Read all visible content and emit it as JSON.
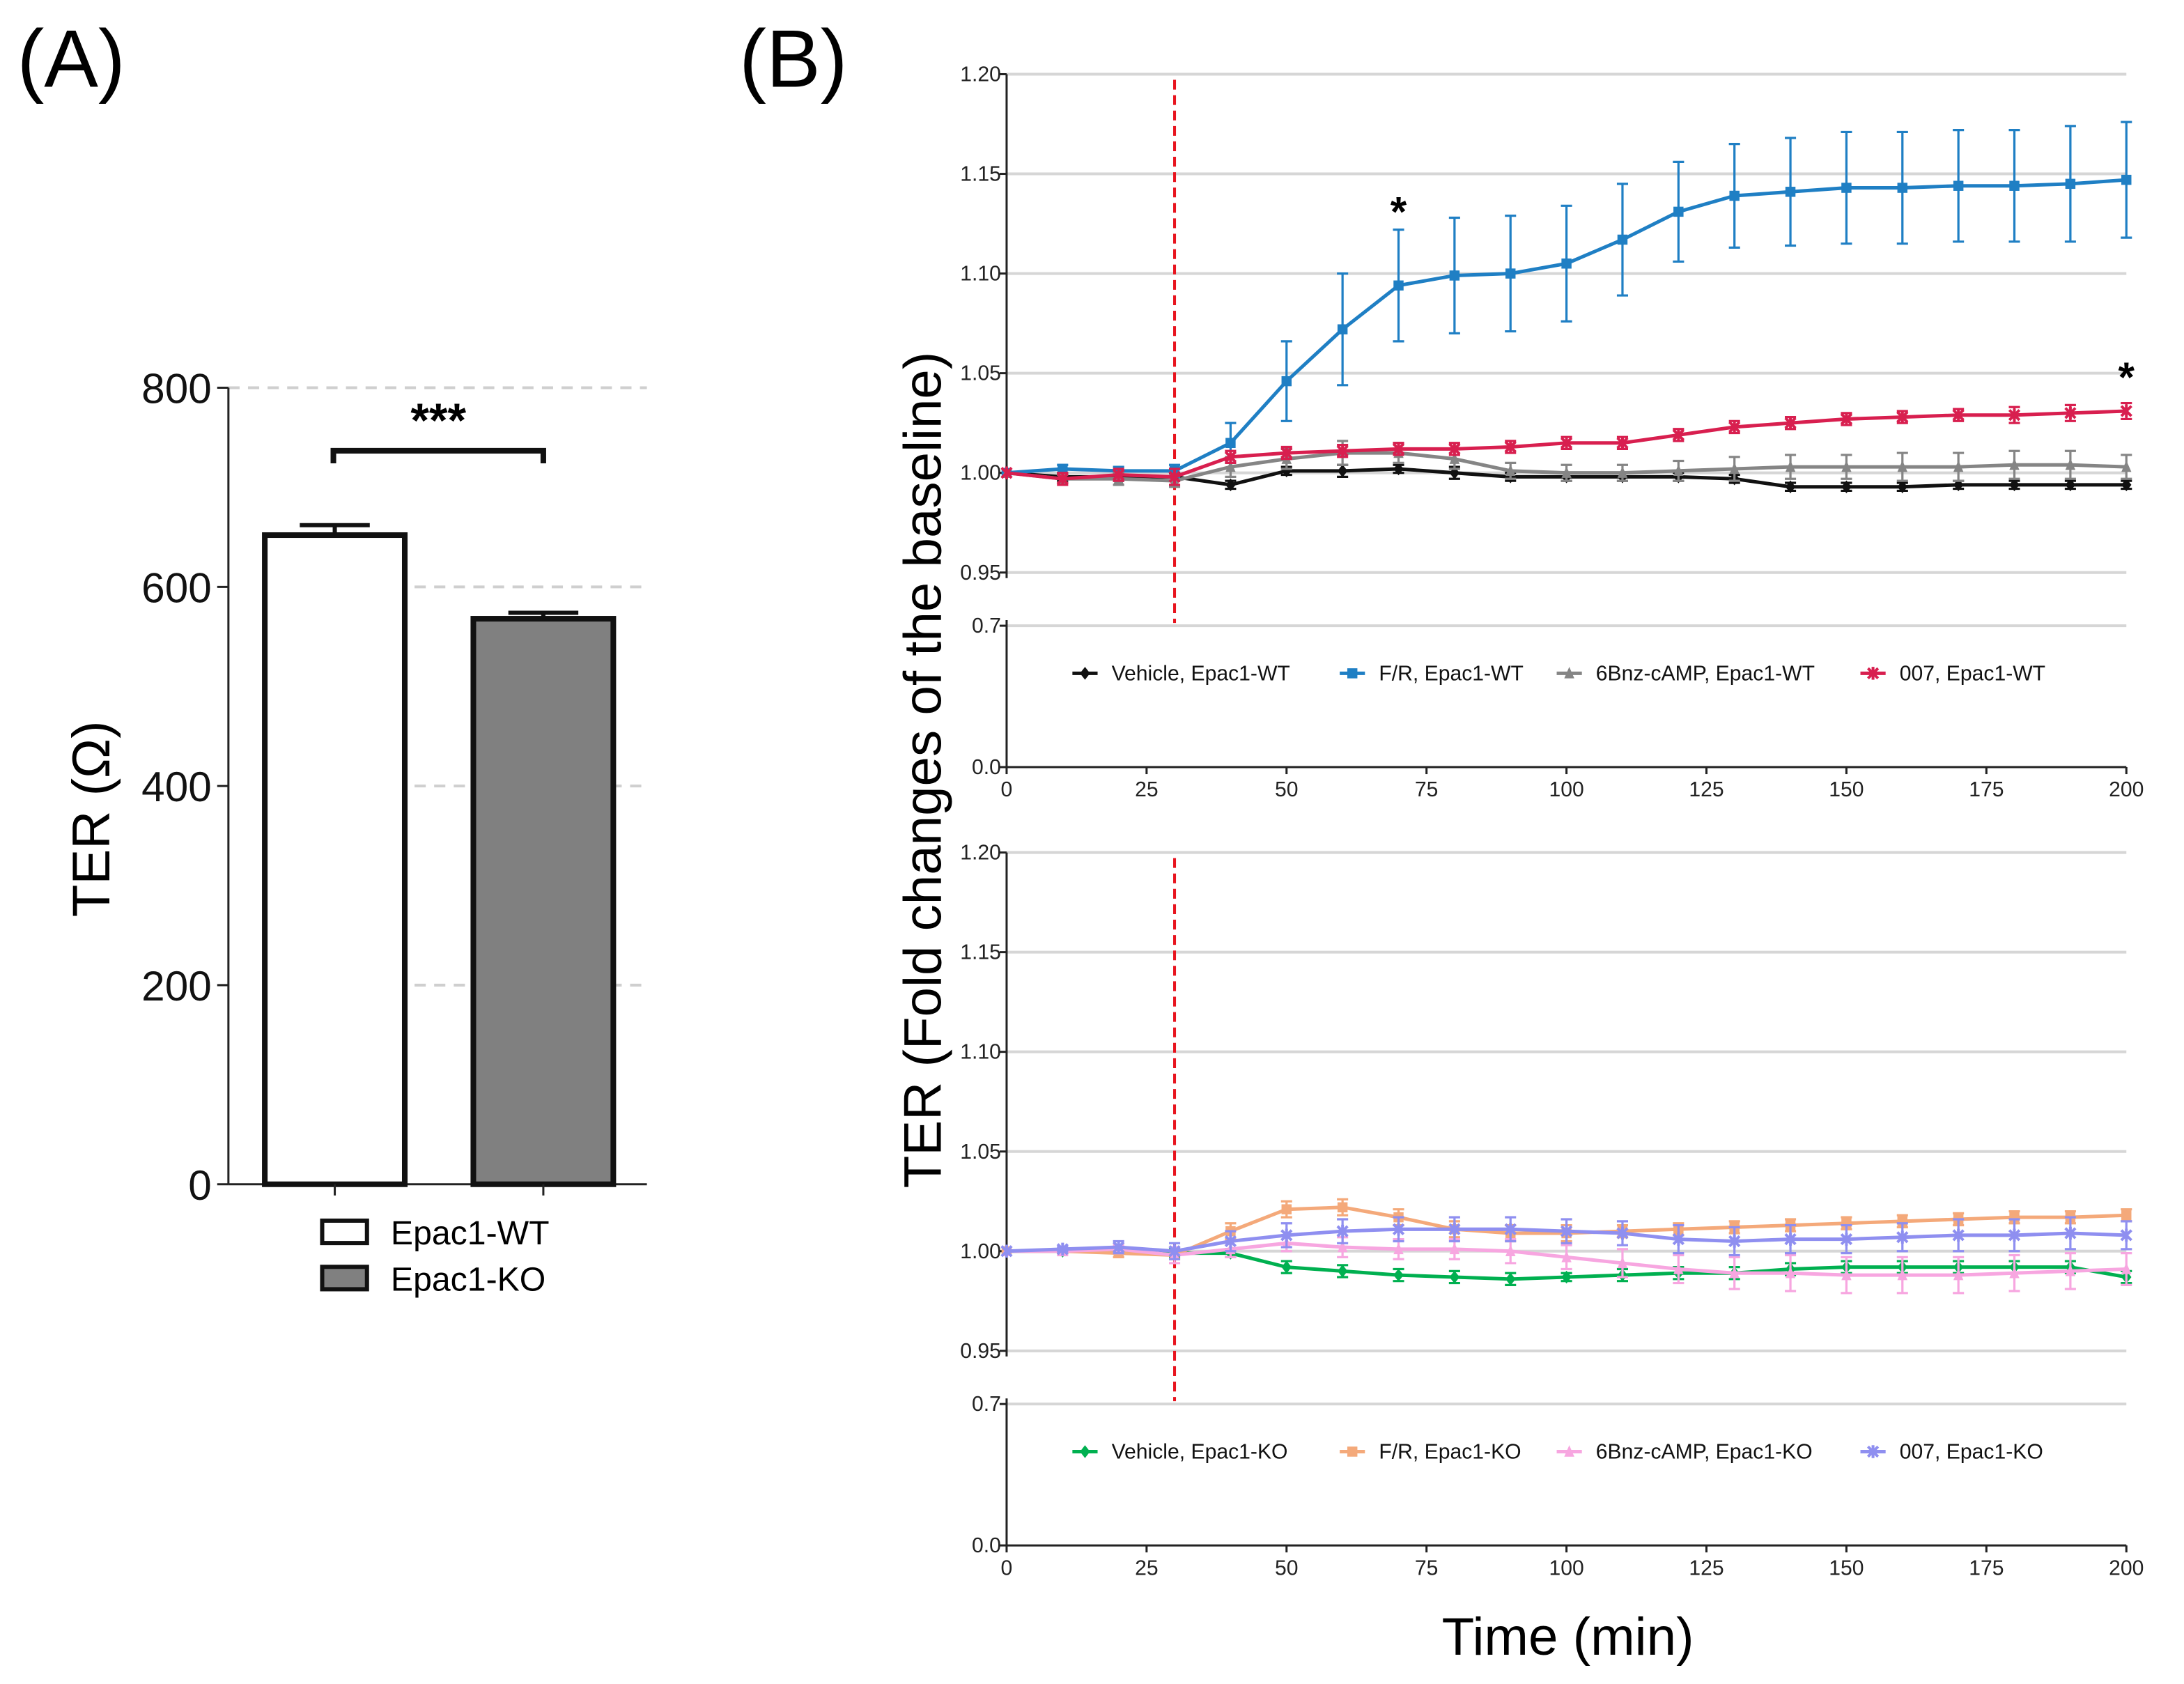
{
  "panel_labels": {
    "a": "(A)",
    "b": "(B)"
  },
  "chart_data": [
    {
      "type": "bar",
      "panel": "A",
      "categories": [
        "Epac1-WT",
        "Epac1-KO"
      ],
      "values": [
        652,
        568
      ],
      "errors": [
        10,
        6
      ],
      "colors": [
        "#ffffff",
        "#808080"
      ],
      "ylabel": "TER (Ω)",
      "ylim": [
        0,
        800
      ],
      "yticks": [
        "0",
        "200",
        "400",
        "600",
        "800"
      ],
      "significance": "***",
      "legend": [
        "Epac1-WT",
        "Epac1-KO"
      ]
    },
    {
      "type": "line",
      "panel": "B-top",
      "x": [
        0,
        10,
        20,
        30,
        40,
        50,
        60,
        70,
        80,
        90,
        100,
        110,
        120,
        130,
        140,
        150,
        160,
        170,
        180,
        190,
        200
      ],
      "xticks": [
        "0",
        "25",
        "50",
        "75",
        "100",
        "125",
        "150",
        "175",
        "200"
      ],
      "yticks_upper": [
        "0.95",
        "1.00",
        "1.05",
        "1.10",
        "1.15",
        "1.20"
      ],
      "yticks_lower": [
        "0.0",
        "0.7"
      ],
      "ylim_upper": [
        0.95,
        1.2
      ],
      "ylim_lower": [
        0.0,
        0.7
      ],
      "treatment_time": 30,
      "annotations": [
        {
          "text": "*",
          "x": 70,
          "y": 1.135
        },
        {
          "text": "*",
          "x": 200,
          "y": 1.052
        }
      ],
      "series": [
        {
          "name": "Vehicle, Epac1-WT",
          "color": "#111111",
          "marker": "diamond",
          "values": [
            1.0,
            0.998,
            0.998,
            0.998,
            0.994,
            1.001,
            1.001,
            1.002,
            1.0,
            0.998,
            0.998,
            0.998,
            0.998,
            0.997,
            0.993,
            0.993,
            0.993,
            0.994,
            0.994,
            0.994,
            0.994
          ],
          "errors": [
            0,
            0.002,
            0.002,
            0.002,
            0.002,
            0.002,
            0.003,
            0.002,
            0.003,
            0.002,
            0.002,
            0.002,
            0.002,
            0.002,
            0.002,
            0.002,
            0.002,
            0.002,
            0.002,
            0.002,
            0.002
          ]
        },
        {
          "name": "F/R, Epac1-WT",
          "color": "#1f7fc4",
          "marker": "square",
          "values": [
            1.0,
            1.002,
            1.001,
            1.001,
            1.015,
            1.046,
            1.072,
            1.094,
            1.099,
            1.1,
            1.105,
            1.117,
            1.131,
            1.139,
            1.141,
            1.143,
            1.143,
            1.144,
            1.144,
            1.145,
            1.147
          ],
          "errors": [
            0,
            0.002,
            0.002,
            0.003,
            0.01,
            0.02,
            0.028,
            0.028,
            0.029,
            0.029,
            0.029,
            0.028,
            0.025,
            0.026,
            0.027,
            0.028,
            0.028,
            0.028,
            0.028,
            0.029,
            0.029
          ]
        },
        {
          "name": "6Bnz-cAMP, Epac1-WT",
          "color": "#858585",
          "marker": "triangle",
          "values": [
            1.0,
            0.997,
            0.997,
            0.996,
            1.003,
            1.007,
            1.01,
            1.01,
            1.007,
            1.001,
            1.0,
            1.0,
            1.001,
            1.002,
            1.003,
            1.003,
            1.003,
            1.003,
            1.004,
            1.004,
            1.003
          ],
          "errors": [
            0,
            0.002,
            0.003,
            0.003,
            0.005,
            0.005,
            0.006,
            0.005,
            0.005,
            0.004,
            0.004,
            0.004,
            0.005,
            0.006,
            0.006,
            0.006,
            0.007,
            0.007,
            0.007,
            0.007,
            0.006
          ]
        },
        {
          "name": "007, Epac1-WT",
          "color": "#d81f4f",
          "marker": "star",
          "values": [
            1.0,
            0.997,
            0.999,
            0.998,
            1.008,
            1.01,
            1.011,
            1.012,
            1.012,
            1.013,
            1.015,
            1.015,
            1.019,
            1.023,
            1.025,
            1.027,
            1.028,
            1.029,
            1.029,
            1.03,
            1.031
          ],
          "errors": [
            0,
            0.003,
            0.003,
            0.004,
            0.003,
            0.003,
            0.003,
            0.003,
            0.003,
            0.003,
            0.003,
            0.003,
            0.003,
            0.003,
            0.003,
            0.003,
            0.003,
            0.003,
            0.004,
            0.004,
            0.004
          ]
        }
      ]
    },
    {
      "type": "line",
      "panel": "B-bottom",
      "x": [
        0,
        10,
        20,
        30,
        40,
        50,
        60,
        70,
        80,
        90,
        100,
        110,
        120,
        130,
        140,
        150,
        160,
        170,
        180,
        190,
        200
      ],
      "xticks": [
        "0",
        "25",
        "50",
        "75",
        "100",
        "125",
        "150",
        "175",
        "200"
      ],
      "yticks_upper": [
        "0.95",
        "1.00",
        "1.05",
        "1.10",
        "1.15",
        "1.20"
      ],
      "yticks_lower": [
        "0.0",
        "0.7"
      ],
      "ylim_upper": [
        0.95,
        1.2
      ],
      "ylim_lower": [
        0.0,
        0.7
      ],
      "treatment_time": 30,
      "annotations": [],
      "series": [
        {
          "name": "Vehicle, Epac1-KO",
          "color": "#00b050",
          "marker": "diamond",
          "values": [
            1.0,
            1.0,
            1.0,
            0.999,
            0.999,
            0.992,
            0.99,
            0.988,
            0.987,
            0.986,
            0.987,
            0.988,
            0.989,
            0.989,
            0.991,
            0.992,
            0.992,
            0.992,
            0.992,
            0.992,
            0.987
          ],
          "errors": [
            0,
            0.001,
            0.001,
            0.002,
            0.002,
            0.003,
            0.003,
            0.003,
            0.003,
            0.003,
            0.002,
            0.003,
            0.003,
            0.003,
            0.003,
            0.003,
            0.003,
            0.003,
            0.003,
            0.003,
            0.003
          ]
        },
        {
          "name": "F/R, Epac1-KO",
          "color": "#f4a97a",
          "marker": "square",
          "values": [
            1.0,
            1.0,
            0.999,
            0.998,
            1.01,
            1.021,
            1.022,
            1.017,
            1.011,
            1.009,
            1.009,
            1.01,
            1.011,
            1.012,
            1.013,
            1.014,
            1.015,
            1.016,
            1.017,
            1.017,
            1.018
          ],
          "errors": [
            0,
            0.001,
            0.002,
            0.002,
            0.004,
            0.004,
            0.004,
            0.004,
            0.004,
            0.004,
            0.004,
            0.003,
            0.003,
            0.003,
            0.003,
            0.003,
            0.003,
            0.003,
            0.003,
            0.003,
            0.003
          ]
        },
        {
          "name": "6Bnz-cAMP, Epac1-KO",
          "color": "#f7a6e0",
          "marker": "triangle",
          "values": [
            1.0,
            1.0,
            1.001,
            0.998,
            1.001,
            1.004,
            1.002,
            1.001,
            1.001,
            1.0,
            0.997,
            0.994,
            0.991,
            0.989,
            0.989,
            0.988,
            0.988,
            0.988,
            0.989,
            0.99,
            0.991
          ],
          "errors": [
            0,
            0.002,
            0.002,
            0.004,
            0.004,
            0.004,
            0.005,
            0.005,
            0.005,
            0.006,
            0.006,
            0.007,
            0.007,
            0.008,
            0.009,
            0.009,
            0.009,
            0.009,
            0.009,
            0.009,
            0.008
          ]
        },
        {
          "name": "007, Epac1-KO",
          "color": "#8f8ff0",
          "marker": "star",
          "values": [
            1.0,
            1.001,
            1.002,
            1.0,
            1.005,
            1.008,
            1.01,
            1.011,
            1.011,
            1.011,
            1.01,
            1.009,
            1.006,
            1.005,
            1.006,
            1.006,
            1.007,
            1.008,
            1.008,
            1.009,
            1.008
          ],
          "errors": [
            0,
            0.001,
            0.003,
            0.004,
            0.005,
            0.006,
            0.006,
            0.006,
            0.006,
            0.006,
            0.006,
            0.006,
            0.007,
            0.007,
            0.007,
            0.007,
            0.007,
            0.008,
            0.008,
            0.008,
            0.007
          ]
        }
      ]
    }
  ],
  "axis_labels": {
    "b_y": "TER (Fold changes of the baseline)",
    "b_x": "Time (min)"
  }
}
